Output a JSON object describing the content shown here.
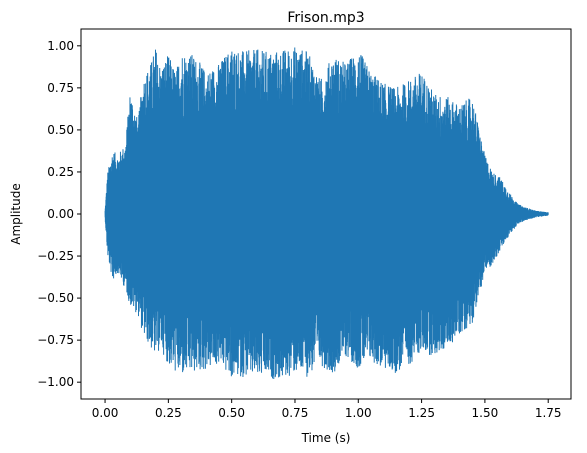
{
  "chart_data": {
    "type": "line",
    "title": "Frison.mp3",
    "xlabel": "Time (s)",
    "ylabel": "Amplitude",
    "xlim": [
      -0.095,
      1.84
    ],
    "ylim": [
      -1.1,
      1.1
    ],
    "xticks": [
      0.0,
      0.25,
      0.5,
      0.75,
      1.0,
      1.25,
      1.5,
      1.75
    ],
    "xtick_labels": [
      "0.00",
      "0.25",
      "0.50",
      "0.75",
      "1.00",
      "1.25",
      "1.50",
      "1.75"
    ],
    "yticks": [
      -1.0,
      -0.75,
      -0.5,
      -0.25,
      0.0,
      0.25,
      0.5,
      0.75,
      1.0
    ],
    "ytick_labels": [
      "−1.00",
      "−0.75",
      "−0.50",
      "−0.25",
      "0.00",
      "0.25",
      "0.50",
      "0.75",
      "1.00"
    ],
    "grid": false,
    "color": "#1f77b4",
    "series": [
      {
        "x_range": [
          0.0,
          1.75
        ],
        "envelope": {
          "t": [
            0.0,
            0.01,
            0.03,
            0.05,
            0.08,
            0.1,
            0.13,
            0.15,
            0.18,
            0.2,
            0.22,
            0.25,
            0.28,
            0.3,
            0.35,
            0.4,
            0.45,
            0.5,
            0.55,
            0.6,
            0.65,
            0.7,
            0.75,
            0.8,
            0.85,
            0.9,
            0.95,
            1.0,
            1.05,
            1.1,
            1.15,
            1.2,
            1.25,
            1.3,
            1.35,
            1.4,
            1.45,
            1.5,
            1.53,
            1.56,
            1.6,
            1.63,
            1.66,
            1.7,
            1.75
          ],
          "upper": [
            0.02,
            0.25,
            0.38,
            0.35,
            0.42,
            0.75,
            0.55,
            0.82,
            0.9,
            1.0,
            0.88,
            0.95,
            0.85,
            0.98,
            0.95,
            0.85,
            0.9,
            1.0,
            0.97,
            0.98,
            0.97,
            0.98,
            1.0,
            0.97,
            0.8,
            0.95,
            0.9,
            0.98,
            0.85,
            0.78,
            0.75,
            0.8,
            0.85,
            0.72,
            0.7,
            0.65,
            0.7,
            0.35,
            0.25,
            0.22,
            0.12,
            0.06,
            0.04,
            0.02,
            0.01
          ],
          "lower": [
            -0.02,
            -0.25,
            -0.4,
            -0.35,
            -0.45,
            -0.55,
            -0.6,
            -0.72,
            -0.8,
            -0.85,
            -0.8,
            -0.9,
            -0.95,
            -0.97,
            -0.95,
            -0.93,
            -0.9,
            -0.98,
            -0.97,
            -0.98,
            -0.98,
            -0.99,
            -0.95,
            -0.97,
            -0.9,
            -0.95,
            -0.85,
            -0.92,
            -0.88,
            -0.93,
            -0.95,
            -0.9,
            -0.82,
            -0.85,
            -0.8,
            -0.72,
            -0.65,
            -0.35,
            -0.3,
            -0.22,
            -0.12,
            -0.06,
            -0.04,
            -0.02,
            -0.01
          ]
        }
      }
    ]
  }
}
